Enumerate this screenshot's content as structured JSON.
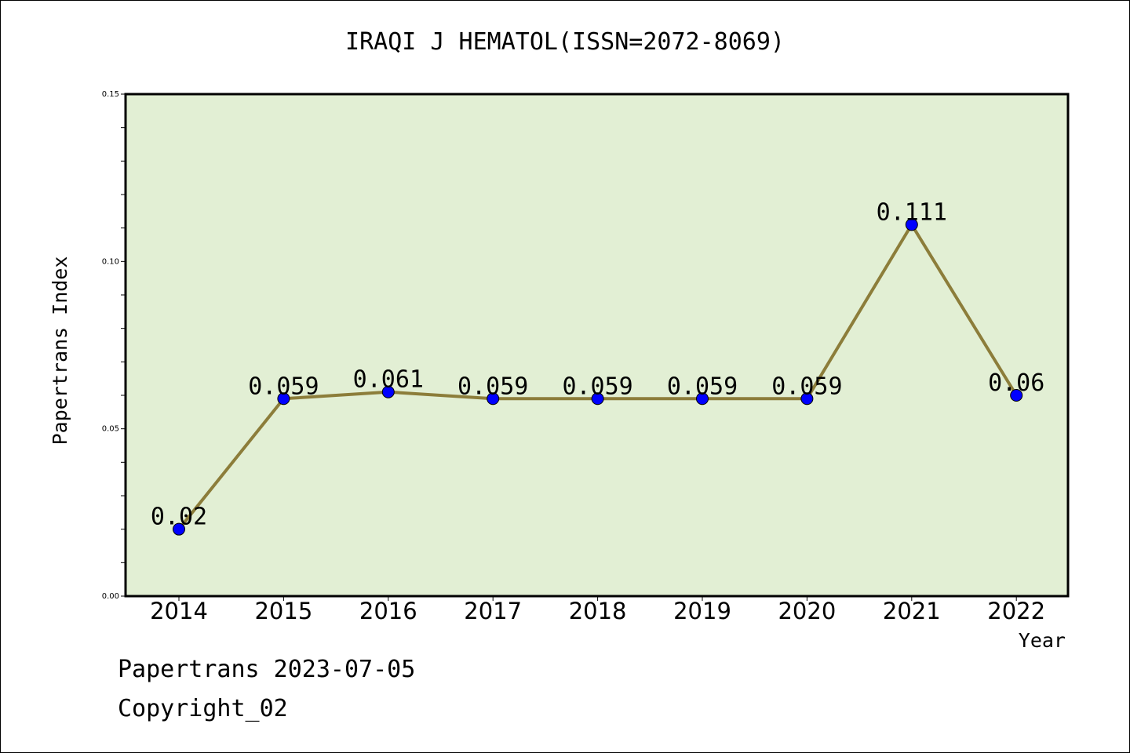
{
  "title": "IRAQI J HEMATOL(ISSN=2072-8069)",
  "footer": {
    "line1": "Papertrans 2023-07-05",
    "line2": "Copyright_02"
  },
  "colors": {
    "plot_background": "#e2efd4",
    "line": "#8c7d3a",
    "marker": "#0000ff"
  },
  "chart_data": {
    "type": "line",
    "xlabel": "Year",
    "ylabel": "Papertrans Index",
    "categories": [
      "2014",
      "2015",
      "2016",
      "2017",
      "2018",
      "2019",
      "2020",
      "2021",
      "2022"
    ],
    "values": [
      0.02,
      0.059,
      0.061,
      0.059,
      0.059,
      0.059,
      0.059,
      0.111,
      0.06
    ],
    "data_labels": [
      "0.02",
      "0.059",
      "0.061",
      "0.059",
      "0.059",
      "0.059",
      "0.059",
      "0.111",
      "0.06"
    ],
    "yticks": [
      "0.00",
      "0.05",
      "0.10",
      "0.15"
    ],
    "ylim": [
      0,
      0.15
    ],
    "grid": false
  }
}
